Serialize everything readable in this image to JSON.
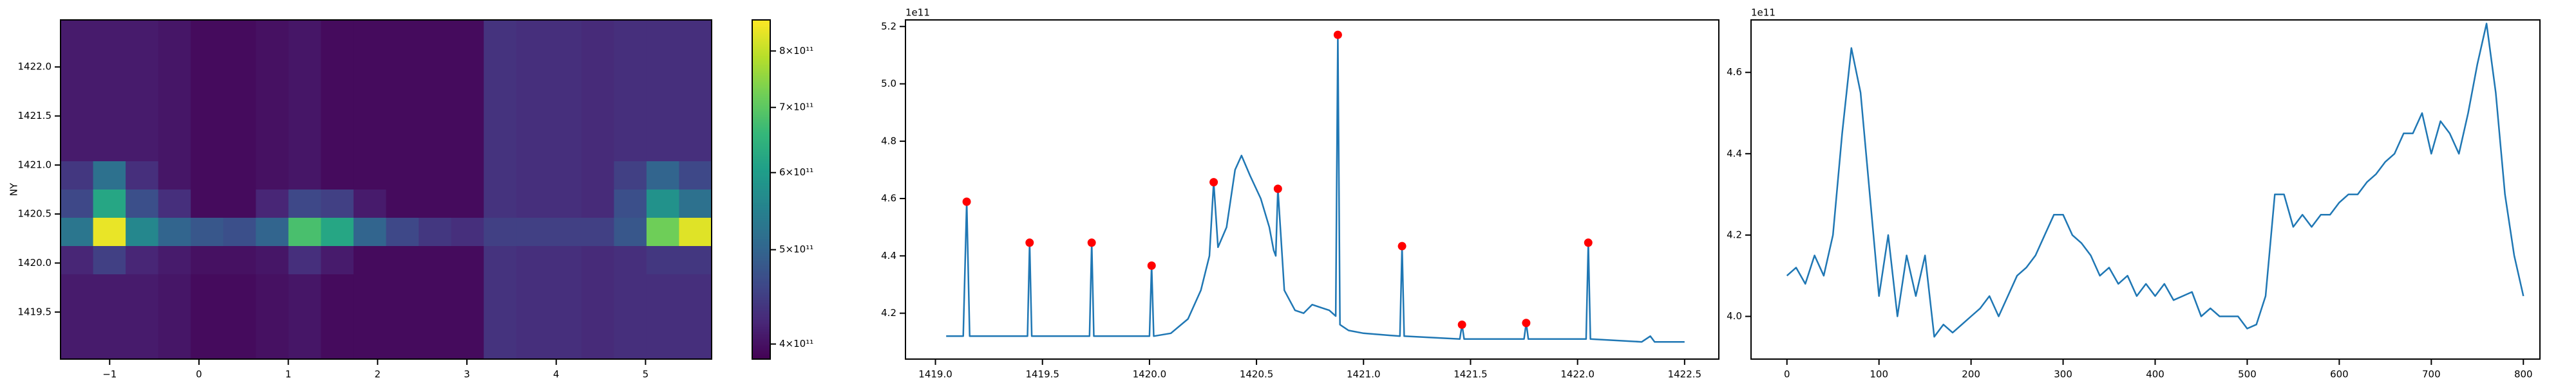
{
  "chart_data": [
    {
      "type": "heatmap",
      "ylabel": "NY",
      "cmap": "viridis",
      "xlim": [
        -1.55,
        5.74
      ],
      "ylim": [
        1419.02,
        1422.48
      ],
      "xticks": [
        {
          "value": -1,
          "label": "−1"
        },
        0,
        1,
        2,
        3,
        4,
        5
      ],
      "yticks": [
        1419.5,
        {
          "value": 1420,
          "label": "1420.0"
        },
        1420.5,
        {
          "value": 1421,
          "label": "1421.0"
        },
        1421.5,
        {
          "value": 1422,
          "label": "1422.0"
        }
      ],
      "z": [
        [
          410000000000.0,
          410000000000.0,
          410000000000.0,
          405000000000.0,
          395000000000.0,
          395000000000.0,
          400000000000.0,
          405000000000.0,
          395000000000.0,
          395000000000.0,
          395000000000.0,
          395000000000.0,
          395000000000.0,
          435000000000.0,
          430000000000.0,
          430000000000.0,
          425000000000.0,
          430000000000.0,
          430000000000.0,
          430000000000.0
        ],
        [
          410000000000.0,
          410000000000.0,
          410000000000.0,
          405000000000.0,
          395000000000.0,
          395000000000.0,
          400000000000.0,
          405000000000.0,
          395000000000.0,
          395000000000.0,
          395000000000.0,
          395000000000.0,
          395000000000.0,
          435000000000.0,
          430000000000.0,
          430000000000.0,
          425000000000.0,
          430000000000.0,
          430000000000.0,
          430000000000.0
        ],
        [
          410000000000.0,
          410000000000.0,
          410000000000.0,
          405000000000.0,
          395000000000.0,
          395000000000.0,
          400000000000.0,
          405000000000.0,
          395000000000.0,
          395000000000.0,
          395000000000.0,
          395000000000.0,
          395000000000.0,
          435000000000.0,
          430000000000.0,
          430000000000.0,
          425000000000.0,
          430000000000.0,
          430000000000.0,
          430000000000.0
        ],
        [
          410000000000.0,
          410000000000.0,
          410000000000.0,
          405000000000.0,
          395000000000.0,
          395000000000.0,
          400000000000.0,
          405000000000.0,
          395000000000.0,
          395000000000.0,
          395000000000.0,
          395000000000.0,
          395000000000.0,
          435000000000.0,
          430000000000.0,
          430000000000.0,
          425000000000.0,
          430000000000.0,
          430000000000.0,
          430000000000.0
        ],
        [
          410000000000.0,
          410000000000.0,
          410000000000.0,
          405000000000.0,
          395000000000.0,
          395000000000.0,
          400000000000.0,
          405000000000.0,
          395000000000.0,
          395000000000.0,
          395000000000.0,
          395000000000.0,
          395000000000.0,
          435000000000.0,
          430000000000.0,
          430000000000.0,
          425000000000.0,
          430000000000.0,
          430000000000.0,
          430000000000.0
        ],
        [
          440000000000.0,
          520000000000.0,
          430000000000.0,
          405000000000.0,
          395000000000.0,
          395000000000.0,
          400000000000.0,
          405000000000.0,
          395000000000.0,
          395000000000.0,
          395000000000.0,
          395000000000.0,
          395000000000.0,
          435000000000.0,
          430000000000.0,
          430000000000.0,
          425000000000.0,
          450000000000.0,
          500000000000.0,
          460000000000.0
        ],
        [
          460000000000.0,
          620000000000.0,
          470000000000.0,
          430000000000.0,
          395000000000.0,
          395000000000.0,
          420000000000.0,
          460000000000.0,
          450000000000.0,
          410000000000.0,
          395000000000.0,
          395000000000.0,
          395000000000.0,
          435000000000.0,
          430000000000.0,
          430000000000.0,
          425000000000.0,
          470000000000.0,
          580000000000.0,
          520000000000.0
        ],
        [
          530000000000.0,
          840000000000.0,
          560000000000.0,
          500000000000.0,
          480000000000.0,
          470000000000.0,
          500000000000.0,
          680000000000.0,
          620000000000.0,
          500000000000.0,
          460000000000.0,
          440000000000.0,
          430000000000.0,
          450000000000.0,
          450000000000.0,
          450000000000.0,
          450000000000.0,
          480000000000.0,
          720000000000.0,
          830000000000.0
        ],
        [
          420000000000.0,
          450000000000.0,
          420000000000.0,
          410000000000.0,
          400000000000.0,
          400000000000.0,
          405000000000.0,
          430000000000.0,
          410000000000.0,
          395000000000.0,
          395000000000.0,
          395000000000.0,
          395000000000.0,
          435000000000.0,
          430000000000.0,
          430000000000.0,
          425000000000.0,
          430000000000.0,
          440000000000.0,
          440000000000.0
        ],
        [
          410000000000.0,
          410000000000.0,
          410000000000.0,
          405000000000.0,
          395000000000.0,
          395000000000.0,
          400000000000.0,
          405000000000.0,
          395000000000.0,
          395000000000.0,
          395000000000.0,
          395000000000.0,
          395000000000.0,
          435000000000.0,
          430000000000.0,
          430000000000.0,
          425000000000.0,
          430000000000.0,
          430000000000.0,
          430000000000.0
        ],
        [
          410000000000.0,
          410000000000.0,
          410000000000.0,
          405000000000.0,
          395000000000.0,
          395000000000.0,
          400000000000.0,
          405000000000.0,
          395000000000.0,
          395000000000.0,
          395000000000.0,
          395000000000.0,
          395000000000.0,
          435000000000.0,
          430000000000.0,
          430000000000.0,
          425000000000.0,
          430000000000.0,
          430000000000.0,
          430000000000.0
        ],
        [
          410000000000.0,
          410000000000.0,
          410000000000.0,
          405000000000.0,
          395000000000.0,
          395000000000.0,
          400000000000.0,
          405000000000.0,
          395000000000.0,
          395000000000.0,
          395000000000.0,
          395000000000.0,
          395000000000.0,
          435000000000.0,
          430000000000.0,
          430000000000.0,
          425000000000.0,
          430000000000.0,
          430000000000.0,
          430000000000.0
        ]
      ],
      "colorbar": {
        "scale": "log",
        "clim": [
          386000000000.0,
          861000000000.0
        ],
        "ticks": [
          {
            "value": 400000000000.0,
            "label": "4×10¹¹"
          },
          {
            "value": 500000000000.0,
            "label": "5×10¹¹"
          },
          {
            "value": 600000000000.0,
            "label": "6×10¹¹"
          },
          {
            "value": 700000000000.0,
            "label": "7×10¹¹"
          },
          {
            "value": 800000000000.0,
            "label": "8×10¹¹"
          }
        ]
      }
    },
    {
      "type": "line",
      "y_offset_label": "1e11",
      "xlim": [
        1418.86,
        1422.66
      ],
      "ylim": [
        4.04,
        5.223
      ],
      "xticks": [
        {
          "value": 1419,
          "label": "1419.0"
        },
        1419.5,
        {
          "value": 1420,
          "label": "1420.0"
        },
        1420.5,
        {
          "value": 1421,
          "label": "1421.0"
        },
        1421.5,
        {
          "value": 1422,
          "label": "1422.0"
        },
        1422.5
      ],
      "yticks": [
        4.2,
        4.4,
        4.6,
        4.8,
        {
          "value": 5,
          "label": "5.0"
        },
        5.2
      ],
      "series": [
        {
          "type": "line",
          "color": "#1f77b4",
          "x": [
            1419.05,
            1419.13,
            1419.146,
            1419.16,
            1419.43,
            1419.44,
            1419.45,
            1419.72,
            1419.73,
            1419.74,
            1420.0,
            1420.01,
            1420.02,
            1420.1,
            1420.18,
            1420.24,
            1420.28,
            1420.3,
            1420.32,
            1420.36,
            1420.4,
            1420.43,
            1420.47,
            1420.52,
            1420.56,
            1420.58,
            1420.59,
            1420.6,
            1420.63,
            1420.68,
            1420.72,
            1420.76,
            1420.8,
            1420.84,
            1420.87,
            1420.88,
            1420.89,
            1420.93,
            1421.0,
            1421.17,
            1421.18,
            1421.19,
            1421.45,
            1421.46,
            1421.47,
            1421.75,
            1421.76,
            1421.77,
            1422.04,
            1422.05,
            1422.06,
            1422.3,
            1422.34,
            1422.36,
            1422.5
          ],
          "values": [
            4.12,
            4.12,
            4.589,
            4.12,
            4.12,
            4.446,
            4.12,
            4.12,
            4.446,
            4.12,
            4.12,
            4.366,
            4.12,
            4.13,
            4.18,
            4.28,
            4.4,
            4.657,
            4.43,
            4.5,
            4.7,
            4.75,
            4.68,
            4.6,
            4.5,
            4.42,
            4.4,
            4.634,
            4.28,
            4.21,
            4.2,
            4.23,
            4.22,
            4.21,
            4.19,
            5.171,
            4.16,
            4.14,
            4.13,
            4.12,
            4.434,
            4.12,
            4.11,
            4.16,
            4.11,
            4.11,
            4.166,
            4.11,
            4.11,
            4.446,
            4.11,
            4.1,
            4.12,
            4.1,
            4.1
          ]
        },
        {
          "type": "scatter",
          "color": "red",
          "x": [
            1419.146,
            1419.44,
            1419.73,
            1420.01,
            1420.3,
            1420.6,
            1420.88,
            1421.18,
            1421.46,
            1421.76,
            1422.05
          ],
          "values": [
            4.589,
            4.446,
            4.446,
            4.366,
            4.657,
            4.634,
            5.171,
            4.434,
            4.16,
            4.166,
            4.446
          ]
        }
      ]
    },
    {
      "type": "line",
      "y_offset_label": "1e11",
      "xlim": [
        -39,
        818
      ],
      "ylim": [
        3.895,
        4.729
      ],
      "xticks": [
        0,
        100,
        200,
        300,
        400,
        500,
        600,
        700,
        800
      ],
      "yticks": [
        {
          "value": 4,
          "label": "4.0"
        },
        4.2,
        4.4,
        4.6
      ],
      "series": [
        {
          "type": "line",
          "color": "#1f77b4",
          "x": [
            0,
            10,
            20,
            30,
            40,
            50,
            60,
            70,
            80,
            90,
            100,
            110,
            120,
            130,
            140,
            150,
            160,
            170,
            180,
            190,
            200,
            210,
            220,
            230,
            240,
            250,
            260,
            270,
            280,
            290,
            300,
            310,
            320,
            330,
            340,
            350,
            360,
            370,
            380,
            390,
            400,
            410,
            420,
            430,
            440,
            450,
            460,
            470,
            480,
            490,
            500,
            510,
            520,
            530,
            540,
            550,
            560,
            570,
            580,
            590,
            600,
            610,
            620,
            630,
            640,
            650,
            660,
            670,
            680,
            690,
            700,
            710,
            720,
            730,
            740,
            750,
            760,
            770,
            780,
            790,
            800
          ],
          "values": [
            4.1,
            4.12,
            4.08,
            4.15,
            4.1,
            4.2,
            4.45,
            4.66,
            4.55,
            4.3,
            4.05,
            4.2,
            4.0,
            4.15,
            4.05,
            4.15,
            3.95,
            3.98,
            3.96,
            3.98,
            4.0,
            4.02,
            4.05,
            4.0,
            4.05,
            4.1,
            4.12,
            4.15,
            4.2,
            4.25,
            4.25,
            4.2,
            4.18,
            4.15,
            4.1,
            4.12,
            4.08,
            4.1,
            4.05,
            4.08,
            4.05,
            4.08,
            4.04,
            4.05,
            4.06,
            4.0,
            4.02,
            4.0,
            4.0,
            4.0,
            3.97,
            3.98,
            4.05,
            4.3,
            4.3,
            4.22,
            4.25,
            4.22,
            4.25,
            4.25,
            4.28,
            4.3,
            4.3,
            4.33,
            4.35,
            4.38,
            4.4,
            4.45,
            4.45,
            4.5,
            4.4,
            4.48,
            4.45,
            4.4,
            4.5,
            4.62,
            4.72,
            4.55,
            4.3,
            4.15,
            4.05
          ]
        }
      ]
    }
  ]
}
